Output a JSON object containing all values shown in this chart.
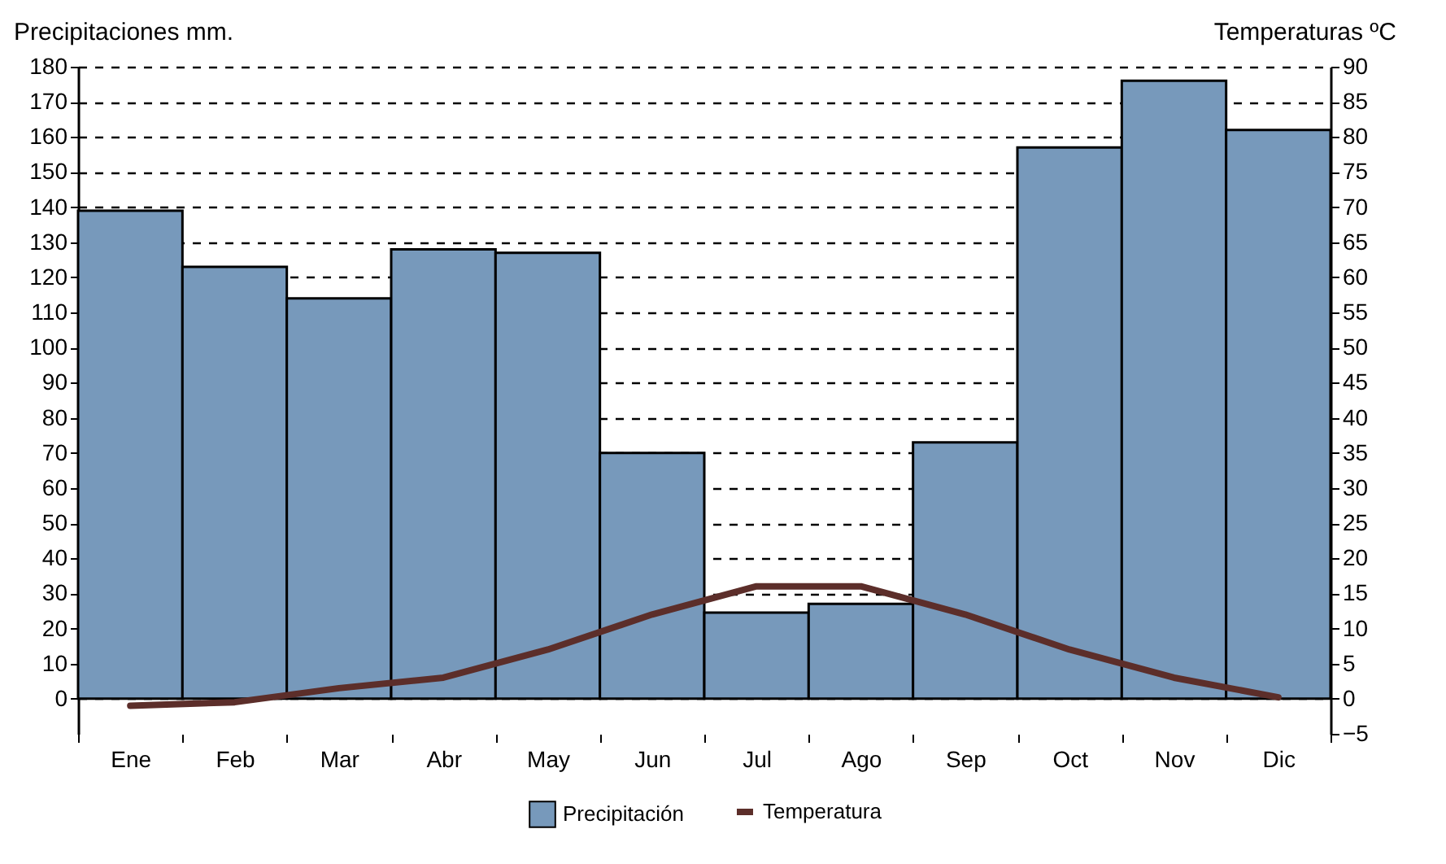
{
  "chart_data": {
    "type": "bar",
    "categories": [
      "Ene",
      "Feb",
      "Mar",
      "Abr",
      "May",
      "Jun",
      "Jul",
      "Ago",
      "Sep",
      "Oct",
      "Nov",
      "Dic"
    ],
    "ylabel": "Precipitaciones mm.",
    "y2label": "Temperaturas ºC",
    "series": [
      {
        "name": "Precipitación",
        "color": "#7799bb",
        "values": [
          139,
          123,
          114,
          128,
          127,
          70,
          24.5,
          27,
          73,
          157,
          176,
          162
        ]
      },
      {
        "name": "Temperatura",
        "type": "line",
        "axis": "y2",
        "color": "#5c2e2a",
        "values": [
          -1,
          -0.5,
          1.5,
          3,
          7,
          12,
          16,
          16,
          12,
          7,
          3,
          0.2
        ]
      }
    ],
    "ylim": [
      -10,
      180
    ],
    "yticks": [
      0,
      10,
      20,
      30,
      40,
      50,
      60,
      70,
      80,
      90,
      100,
      110,
      120,
      130,
      140,
      150,
      160,
      170,
      180
    ],
    "y2lim": [
      -5,
      90
    ],
    "y2ticks": [
      -5,
      0,
      5,
      10,
      15,
      20,
      25,
      30,
      35,
      40,
      45,
      50,
      55,
      60,
      65,
      70,
      75,
      80,
      85,
      90
    ],
    "grid": "y",
    "legend": "bottom"
  }
}
